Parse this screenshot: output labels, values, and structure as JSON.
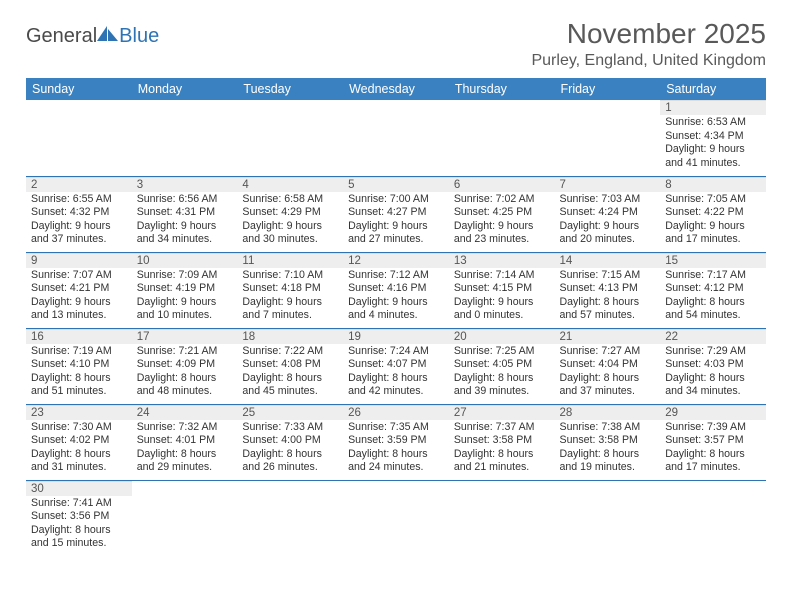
{
  "brand": {
    "part1": "General",
    "part2": "Blue"
  },
  "header": {
    "title": "November 2025",
    "location": "Purley, England, United Kingdom"
  },
  "style": {
    "header_bg": "#3a81c1",
    "header_text": "#ffffff",
    "row_border": "#2e74b5",
    "daynum_bg": "#eeeeee",
    "title_color": "#595959",
    "body_font_size": 10.6,
    "title_font_size": 28,
    "location_font_size": 16,
    "th_font_size": 12.5
  },
  "weekdays": [
    "Sunday",
    "Monday",
    "Tuesday",
    "Wednesday",
    "Thursday",
    "Friday",
    "Saturday"
  ],
  "days": {
    "1": {
      "sunrise": "6:53 AM",
      "sunset": "4:34 PM",
      "dl_h": 9,
      "dl_m": 41
    },
    "2": {
      "sunrise": "6:55 AM",
      "sunset": "4:32 PM",
      "dl_h": 9,
      "dl_m": 37
    },
    "3": {
      "sunrise": "6:56 AM",
      "sunset": "4:31 PM",
      "dl_h": 9,
      "dl_m": 34
    },
    "4": {
      "sunrise": "6:58 AM",
      "sunset": "4:29 PM",
      "dl_h": 9,
      "dl_m": 30
    },
    "5": {
      "sunrise": "7:00 AM",
      "sunset": "4:27 PM",
      "dl_h": 9,
      "dl_m": 27
    },
    "6": {
      "sunrise": "7:02 AM",
      "sunset": "4:25 PM",
      "dl_h": 9,
      "dl_m": 23
    },
    "7": {
      "sunrise": "7:03 AM",
      "sunset": "4:24 PM",
      "dl_h": 9,
      "dl_m": 20
    },
    "8": {
      "sunrise": "7:05 AM",
      "sunset": "4:22 PM",
      "dl_h": 9,
      "dl_m": 17
    },
    "9": {
      "sunrise": "7:07 AM",
      "sunset": "4:21 PM",
      "dl_h": 9,
      "dl_m": 13
    },
    "10": {
      "sunrise": "7:09 AM",
      "sunset": "4:19 PM",
      "dl_h": 9,
      "dl_m": 10
    },
    "11": {
      "sunrise": "7:10 AM",
      "sunset": "4:18 PM",
      "dl_h": 9,
      "dl_m": 7
    },
    "12": {
      "sunrise": "7:12 AM",
      "sunset": "4:16 PM",
      "dl_h": 9,
      "dl_m": 4
    },
    "13": {
      "sunrise": "7:14 AM",
      "sunset": "4:15 PM",
      "dl_h": 9,
      "dl_m": 0
    },
    "14": {
      "sunrise": "7:15 AM",
      "sunset": "4:13 PM",
      "dl_h": 8,
      "dl_m": 57
    },
    "15": {
      "sunrise": "7:17 AM",
      "sunset": "4:12 PM",
      "dl_h": 8,
      "dl_m": 54
    },
    "16": {
      "sunrise": "7:19 AM",
      "sunset": "4:10 PM",
      "dl_h": 8,
      "dl_m": 51
    },
    "17": {
      "sunrise": "7:21 AM",
      "sunset": "4:09 PM",
      "dl_h": 8,
      "dl_m": 48
    },
    "18": {
      "sunrise": "7:22 AM",
      "sunset": "4:08 PM",
      "dl_h": 8,
      "dl_m": 45
    },
    "19": {
      "sunrise": "7:24 AM",
      "sunset": "4:07 PM",
      "dl_h": 8,
      "dl_m": 42
    },
    "20": {
      "sunrise": "7:25 AM",
      "sunset": "4:05 PM",
      "dl_h": 8,
      "dl_m": 39
    },
    "21": {
      "sunrise": "7:27 AM",
      "sunset": "4:04 PM",
      "dl_h": 8,
      "dl_m": 37
    },
    "22": {
      "sunrise": "7:29 AM",
      "sunset": "4:03 PM",
      "dl_h": 8,
      "dl_m": 34
    },
    "23": {
      "sunrise": "7:30 AM",
      "sunset": "4:02 PM",
      "dl_h": 8,
      "dl_m": 31
    },
    "24": {
      "sunrise": "7:32 AM",
      "sunset": "4:01 PM",
      "dl_h": 8,
      "dl_m": 29
    },
    "25": {
      "sunrise": "7:33 AM",
      "sunset": "4:00 PM",
      "dl_h": 8,
      "dl_m": 26
    },
    "26": {
      "sunrise": "7:35 AM",
      "sunset": "3:59 PM",
      "dl_h": 8,
      "dl_m": 24
    },
    "27": {
      "sunrise": "7:37 AM",
      "sunset": "3:58 PM",
      "dl_h": 8,
      "dl_m": 21
    },
    "28": {
      "sunrise": "7:38 AM",
      "sunset": "3:58 PM",
      "dl_h": 8,
      "dl_m": 19
    },
    "29": {
      "sunrise": "7:39 AM",
      "sunset": "3:57 PM",
      "dl_h": 8,
      "dl_m": 17
    },
    "30": {
      "sunrise": "7:41 AM",
      "sunset": "3:56 PM",
      "dl_h": 8,
      "dl_m": 15
    }
  },
  "grid": [
    [
      null,
      null,
      null,
      null,
      null,
      null,
      "1"
    ],
    [
      "2",
      "3",
      "4",
      "5",
      "6",
      "7",
      "8"
    ],
    [
      "9",
      "10",
      "11",
      "12",
      "13",
      "14",
      "15"
    ],
    [
      "16",
      "17",
      "18",
      "19",
      "20",
      "21",
      "22"
    ],
    [
      "23",
      "24",
      "25",
      "26",
      "27",
      "28",
      "29"
    ],
    [
      "30",
      null,
      null,
      null,
      null,
      null,
      null
    ]
  ]
}
